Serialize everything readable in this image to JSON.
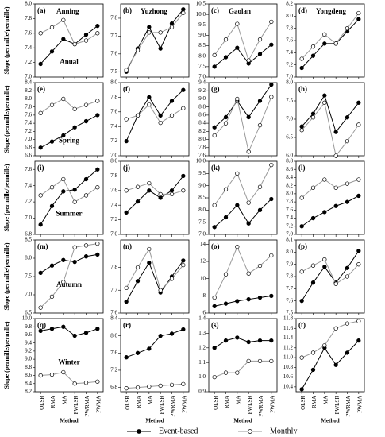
{
  "chart_data": [
    {
      "type": "line",
      "panel_label": "(a)",
      "title": "Anning",
      "annotation": "Anual",
      "ylabel": "Slope (permille/permille)",
      "categories": [
        null,
        null,
        null,
        null,
        null,
        null
      ],
      "ylim": [
        7.0,
        8.0
      ],
      "yticks": [
        {
          "value": 7,
          "label": "7.0"
        },
        7.2,
        7.4,
        7.6,
        7.8,
        {
          "value": 8,
          "label": "8.0"
        }
      ],
      "series": [
        {
          "name": "Event-based",
          "color": "#000",
          "fill": "#000",
          "values": [
            7.18,
            7.35,
            7.52,
            7.45,
            7.58,
            7.7
          ]
        },
        {
          "name": "Monthly",
          "color": "#999",
          "fill": "#fff",
          "values": [
            7.6,
            7.68,
            7.78,
            7.45,
            7.5,
            7.6
          ]
        }
      ]
    },
    {
      "type": "line",
      "panel_label": "(b)",
      "title": "Yuzhong",
      "categories": [
        null,
        null,
        null,
        null,
        null,
        null
      ],
      "ylim": [
        7.47,
        7.88
      ],
      "yticks": [
        7.5,
        7.6,
        7.7,
        7.8
      ],
      "series": [
        {
          "color": "#000",
          "fill": "#000",
          "values": [
            7.5,
            7.63,
            7.75,
            7.63,
            7.77,
            7.85
          ]
        },
        {
          "color": "#999",
          "fill": "#fff",
          "values": [
            7.51,
            7.62,
            7.72,
            7.72,
            7.75,
            7.83
          ]
        }
      ]
    },
    {
      "type": "line",
      "panel_label": "(c)",
      "title": "Gaolan",
      "categories": [
        null,
        null,
        null,
        null,
        null,
        null
      ],
      "ylim": [
        7.0,
        10.5
      ],
      "yticks": [
        {
          "value": 7,
          "label": "7.0"
        },
        7.5,
        {
          "value": 8,
          "label": "8.0"
        },
        8.5,
        {
          "value": 9,
          "label": "9.0"
        },
        9.5,
        {
          "value": 10,
          "label": "10.0"
        },
        10.5
      ],
      "series": [
        {
          "color": "#000",
          "fill": "#000",
          "values": [
            7.5,
            7.95,
            8.4,
            7.65,
            8.1,
            8.55
          ]
        },
        {
          "color": "#999",
          "fill": "#fff",
          "values": [
            8.05,
            8.8,
            9.55,
            7.8,
            8.8,
            9.65
          ]
        }
      ]
    },
    {
      "type": "line",
      "panel_label": "(d)",
      "title": "Yongdeng",
      "categories": [
        null,
        null,
        null,
        null,
        null,
        null
      ],
      "ylim": [
        7.0,
        8.2
      ],
      "yticks": [
        {
          "value": 7,
          "label": "7.0"
        },
        7.2,
        7.4,
        7.6,
        7.8,
        {
          "value": 8,
          "label": "8.0"
        },
        8.2
      ],
      "series": [
        {
          "color": "#000",
          "fill": "#000",
          "values": [
            7.15,
            7.35,
            7.55,
            7.55,
            7.75,
            7.95
          ]
        },
        {
          "color": "#999",
          "fill": "#fff",
          "values": [
            7.3,
            7.5,
            7.7,
            7.55,
            7.8,
            8.05
          ]
        }
      ]
    },
    {
      "type": "line",
      "panel_label": "(e)",
      "annotation": "Spring",
      "ylabel": "Slope (permille/permille)",
      "categories": [
        null,
        null,
        null,
        null,
        null,
        null
      ],
      "ylim": [
        6.6,
        8.4
      ],
      "yticks": [
        6.6,
        6.8,
        {
          "value": 7,
          "label": "7.0"
        },
        7.2,
        7.4,
        7.6,
        7.8,
        {
          "value": 8,
          "label": "8.0"
        },
        8.2,
        8.4
      ],
      "series": [
        {
          "color": "#000",
          "fill": "#000",
          "values": [
            6.8,
            6.95,
            7.1,
            7.3,
            7.45,
            7.6
          ]
        },
        {
          "color": "#999",
          "fill": "#fff",
          "values": [
            7.65,
            7.85,
            8.0,
            7.75,
            7.85,
            7.95
          ]
        }
      ]
    },
    {
      "type": "line",
      "panel_label": "(f)",
      "categories": [
        null,
        null,
        null,
        null,
        null,
        null
      ],
      "ylim": [
        7.0,
        8.0
      ],
      "yticks": [
        {
          "value": 7,
          "label": "7.0"
        },
        7.2,
        7.4,
        7.6,
        7.8,
        {
          "value": 8,
          "label": "8.0"
        }
      ],
      "series": [
        {
          "color": "#000",
          "fill": "#000",
          "values": [
            7.2,
            7.55,
            7.8,
            7.55,
            7.75,
            7.9
          ]
        },
        {
          "color": "#999",
          "fill": "#fff",
          "values": [
            7.5,
            7.55,
            7.7,
            7.45,
            7.55,
            7.65
          ]
        }
      ]
    },
    {
      "type": "line",
      "panel_label": "(g)",
      "categories": [
        null,
        null,
        null,
        null,
        null,
        null
      ],
      "ylim": [
        7.6,
        9.4
      ],
      "yticks": [
        7.6,
        7.8,
        {
          "value": 8,
          "label": "8.0"
        },
        8.2,
        8.4,
        8.6,
        8.8,
        {
          "value": 9,
          "label": "9.0"
        },
        9.2,
        9.4
      ],
      "series": [
        {
          "color": "#000",
          "fill": "#000",
          "values": [
            8.3,
            8.55,
            8.95,
            8.55,
            8.95,
            9.35
          ]
        },
        {
          "color": "#999",
          "fill": "#fff",
          "values": [
            8.1,
            8.4,
            9.0,
            7.7,
            8.35,
            9.05
          ]
        }
      ]
    },
    {
      "type": "line",
      "panel_label": "(h)",
      "categories": [
        null,
        null,
        null,
        null,
        null,
        null
      ],
      "ylim": [
        6.0,
        8.0
      ],
      "yticks": [
        {
          "value": 6,
          "label": "6.0"
        },
        6.5,
        {
          "value": 7,
          "label": "7.0"
        },
        7.5,
        {
          "value": 8,
          "label": "8.0"
        }
      ],
      "series": [
        {
          "color": "#000",
          "fill": "#000",
          "values": [
            6.8,
            7.15,
            7.65,
            6.65,
            7.05,
            7.45
          ]
        },
        {
          "color": "#999",
          "fill": "#fff",
          "values": [
            6.7,
            7.05,
            7.45,
            6.0,
            6.4,
            6.85
          ]
        }
      ]
    },
    {
      "type": "line",
      "panel_label": "(i)",
      "annotation": "Summer",
      "ylabel": "Slope (permille/permille)",
      "categories": [
        null,
        null,
        null,
        null,
        null,
        null
      ],
      "ylim": [
        6.8,
        7.7
      ],
      "yticks": [
        6.8,
        {
          "value": 7,
          "label": "7.0"
        },
        7.2,
        7.4,
        7.6
      ],
      "series": [
        {
          "color": "#000",
          "fill": "#000",
          "values": [
            6.92,
            7.15,
            7.33,
            7.35,
            7.48,
            7.6
          ]
        },
        {
          "color": "#999",
          "fill": "#fff",
          "values": [
            7.28,
            7.38,
            7.48,
            7.2,
            7.28,
            7.38
          ]
        }
      ]
    },
    {
      "type": "line",
      "panel_label": "(j)",
      "categories": [
        null,
        null,
        null,
        null,
        null,
        null
      ],
      "ylim": [
        7.0,
        8.0
      ],
      "yticks": [
        {
          "value": 7,
          "label": "7.0"
        },
        7.2,
        7.4,
        7.6,
        7.8,
        {
          "value": 8,
          "label": "8.0"
        }
      ],
      "series": [
        {
          "color": "#000",
          "fill": "#000",
          "values": [
            7.3,
            7.45,
            7.6,
            7.5,
            7.6,
            7.8
          ]
        },
        {
          "color": "#999",
          "fill": "#fff",
          "values": [
            7.6,
            7.65,
            7.7,
            7.55,
            7.55,
            7.6
          ]
        }
      ]
    },
    {
      "type": "line",
      "panel_label": "(k)",
      "categories": [
        null,
        null,
        null,
        null,
        null,
        null
      ],
      "ylim": [
        7.0,
        10.0
      ],
      "yticks": [
        {
          "value": 7,
          "label": "7.0"
        },
        7.5,
        {
          "value": 8,
          "label": "8.0"
        },
        8.5,
        {
          "value": 9,
          "label": "9.0"
        },
        9.5,
        {
          "value": 10,
          "label": "10.0"
        }
      ],
      "series": [
        {
          "color": "#000",
          "fill": "#000",
          "values": [
            7.3,
            7.7,
            8.2,
            7.45,
            8.0,
            8.45
          ]
        },
        {
          "color": "#999",
          "fill": "#fff",
          "values": [
            8.2,
            8.85,
            9.5,
            8.3,
            8.95,
            9.85
          ]
        }
      ]
    },
    {
      "type": "line",
      "panel_label": "(l)",
      "categories": [
        null,
        null,
        null,
        null,
        null,
        null
      ],
      "ylim": [
        7.0,
        8.8
      ],
      "yticks": [
        {
          "value": 7,
          "label": "7.0"
        },
        7.2,
        7.4,
        7.6,
        7.8,
        {
          "value": 8,
          "label": "8.0"
        },
        8.2,
        8.4,
        8.6,
        8.8
      ],
      "series": [
        {
          "color": "#000",
          "fill": "#000",
          "values": [
            7.2,
            7.4,
            7.55,
            7.7,
            7.8,
            7.95
          ]
        },
        {
          "color": "#999",
          "fill": "#fff",
          "values": [
            7.9,
            8.15,
            8.35,
            8.15,
            8.25,
            8.35
          ]
        }
      ]
    },
    {
      "type": "line",
      "panel_label": "(m)",
      "annotation": "Autumn",
      "ylabel": "Slope (permille/permille)",
      "categories": [
        null,
        null,
        null,
        null,
        null,
        null
      ],
      "ylim": [
        6.5,
        8.5
      ],
      "yticks": [
        6.5,
        {
          "value": 7,
          "label": "7.0"
        },
        7.5,
        {
          "value": 8,
          "label": "8.0"
        },
        8.5
      ],
      "series": [
        {
          "color": "#000",
          "fill": "#000",
          "values": [
            7.6,
            7.8,
            7.95,
            7.9,
            8.05,
            8.1
          ]
        },
        {
          "color": "#999",
          "fill": "#fff",
          "values": [
            6.65,
            6.95,
            7.35,
            8.3,
            8.35,
            8.4
          ]
        }
      ]
    },
    {
      "type": "line",
      "panel_label": "(n)",
      "categories": [
        null,
        null,
        null,
        null,
        null,
        null
      ],
      "ylim": [
        7.6,
        7.92
      ],
      "yticks": [
        7.6,
        7.7,
        7.8
      ],
      "series": [
        {
          "color": "#000",
          "fill": "#000",
          "values": [
            7.65,
            7.74,
            7.82,
            7.69,
            7.76,
            7.83
          ]
        },
        {
          "color": "#999",
          "fill": "#fff",
          "values": [
            7.71,
            7.8,
            7.88,
            7.7,
            7.75,
            7.81
          ]
        }
      ]
    },
    {
      "type": "line",
      "panel_label": "(o)",
      "categories": [
        null,
        null,
        null,
        null,
        null,
        null
      ],
      "ylim": [
        6,
        14.5
      ],
      "yticks": [
        6,
        8,
        10,
        12,
        14
      ],
      "series": [
        {
          "color": "#000",
          "fill": "#000",
          "values": [
            6.8,
            7.1,
            7.4,
            7.6,
            7.8,
            8.0
          ]
        },
        {
          "color": "#999",
          "fill": "#fff",
          "values": [
            7.8,
            10.5,
            13.7,
            10.6,
            11.5,
            12.7
          ]
        }
      ]
    },
    {
      "type": "line",
      "panel_label": "(p)",
      "categories": [
        null,
        null,
        null,
        null,
        null,
        null
      ],
      "ylim": [
        7.5,
        8.1
      ],
      "yticks": [
        7.5,
        7.6,
        7.7,
        7.8,
        7.9,
        {
          "value": 8,
          "label": "8.0"
        },
        8.1
      ],
      "series": [
        {
          "color": "#000",
          "fill": "#000",
          "values": [
            7.6,
            7.75,
            7.88,
            7.75,
            7.87,
            8.01
          ]
        },
        {
          "color": "#999",
          "fill": "#fff",
          "values": [
            7.84,
            7.89,
            7.94,
            7.74,
            7.8,
            7.9
          ]
        }
      ]
    },
    {
      "type": "line",
      "panel_label": "(q)",
      "annotation": "Winter",
      "ylabel": "Slope (permille/permille)",
      "xlabel": "Method",
      "categories": [
        "OLSR",
        "RMA",
        "MA",
        "PWLSR",
        "PWRMA",
        "PWMA"
      ],
      "ylim": [
        8.2,
        10.0
      ],
      "yticks": [
        8.2,
        8.4,
        8.6,
        8.8,
        {
          "value": 9,
          "label": "9.0"
        },
        9.2,
        9.4,
        9.6,
        9.8,
        {
          "value": 10,
          "label": "10.0"
        }
      ],
      "series": [
        {
          "color": "#000",
          "fill": "#000",
          "values": [
            9.7,
            9.75,
            9.8,
            9.58,
            9.65,
            9.75
          ]
        },
        {
          "color": "#999",
          "fill": "#fff",
          "values": [
            8.6,
            8.62,
            8.68,
            8.4,
            8.42,
            8.45
          ]
        }
      ]
    },
    {
      "type": "line",
      "panel_label": "(r)",
      "xlabel": "Method",
      "categories": [
        "OLSR",
        "RMA",
        "MA",
        "PWLSR",
        "PWRMA",
        "PWMA"
      ],
      "ylim": [
        6.7,
        8.4
      ],
      "yticks": [
        6.8,
        7.2,
        7.6,
        {
          "value": 8,
          "label": "8.0"
        },
        8.4
      ],
      "series": [
        {
          "color": "#000",
          "fill": "#000",
          "values": [
            7.5,
            7.6,
            7.7,
            8.0,
            8.05,
            8.15
          ]
        },
        {
          "color": "#999",
          "fill": "#fff",
          "values": [
            6.78,
            6.8,
            6.82,
            6.84,
            6.86,
            6.88
          ]
        }
      ]
    },
    {
      "type": "line",
      "panel_label": "(s)",
      "xlabel": "Method",
      "categories": [
        "OLSR",
        "RMA",
        "MA",
        "PWLSR",
        "PWRMA",
        "PWMA"
      ],
      "ylim": [
        0.9,
        1.4
      ],
      "yticks": [
        0.9,
        {
          "value": 1,
          "label": "1.0"
        },
        1.1,
        1.2,
        1.3,
        1.4
      ],
      "series": [
        {
          "color": "#000",
          "fill": "#000",
          "values": [
            1.2,
            1.25,
            1.27,
            1.24,
            1.25,
            1.25
          ]
        },
        {
          "color": "#999",
          "fill": "#fff",
          "values": [
            1.0,
            1.03,
            1.03,
            1.11,
            1.11,
            1.11
          ]
        }
      ]
    },
    {
      "type": "line",
      "panel_label": "(t)",
      "xlabel": "Method",
      "categories": [
        "OLSR",
        "RMA",
        "MA",
        "PWLSR",
        "PWRMA",
        "PWMA"
      ],
      "ylim": [
        10.3,
        11.8
      ],
      "yticks": [
        10.4,
        10.6,
        10.8,
        {
          "value": 11,
          "label": "11.0"
        },
        11.2,
        11.4,
        11.6,
        11.8
      ],
      "series": [
        {
          "color": "#000",
          "fill": "#000",
          "values": [
            10.35,
            10.75,
            11.2,
            10.85,
            11.1,
            11.35
          ]
        },
        {
          "color": "#999",
          "fill": "#fff",
          "values": [
            11.0,
            11.1,
            11.25,
            11.6,
            11.7,
            11.75
          ]
        }
      ]
    }
  ]
}
